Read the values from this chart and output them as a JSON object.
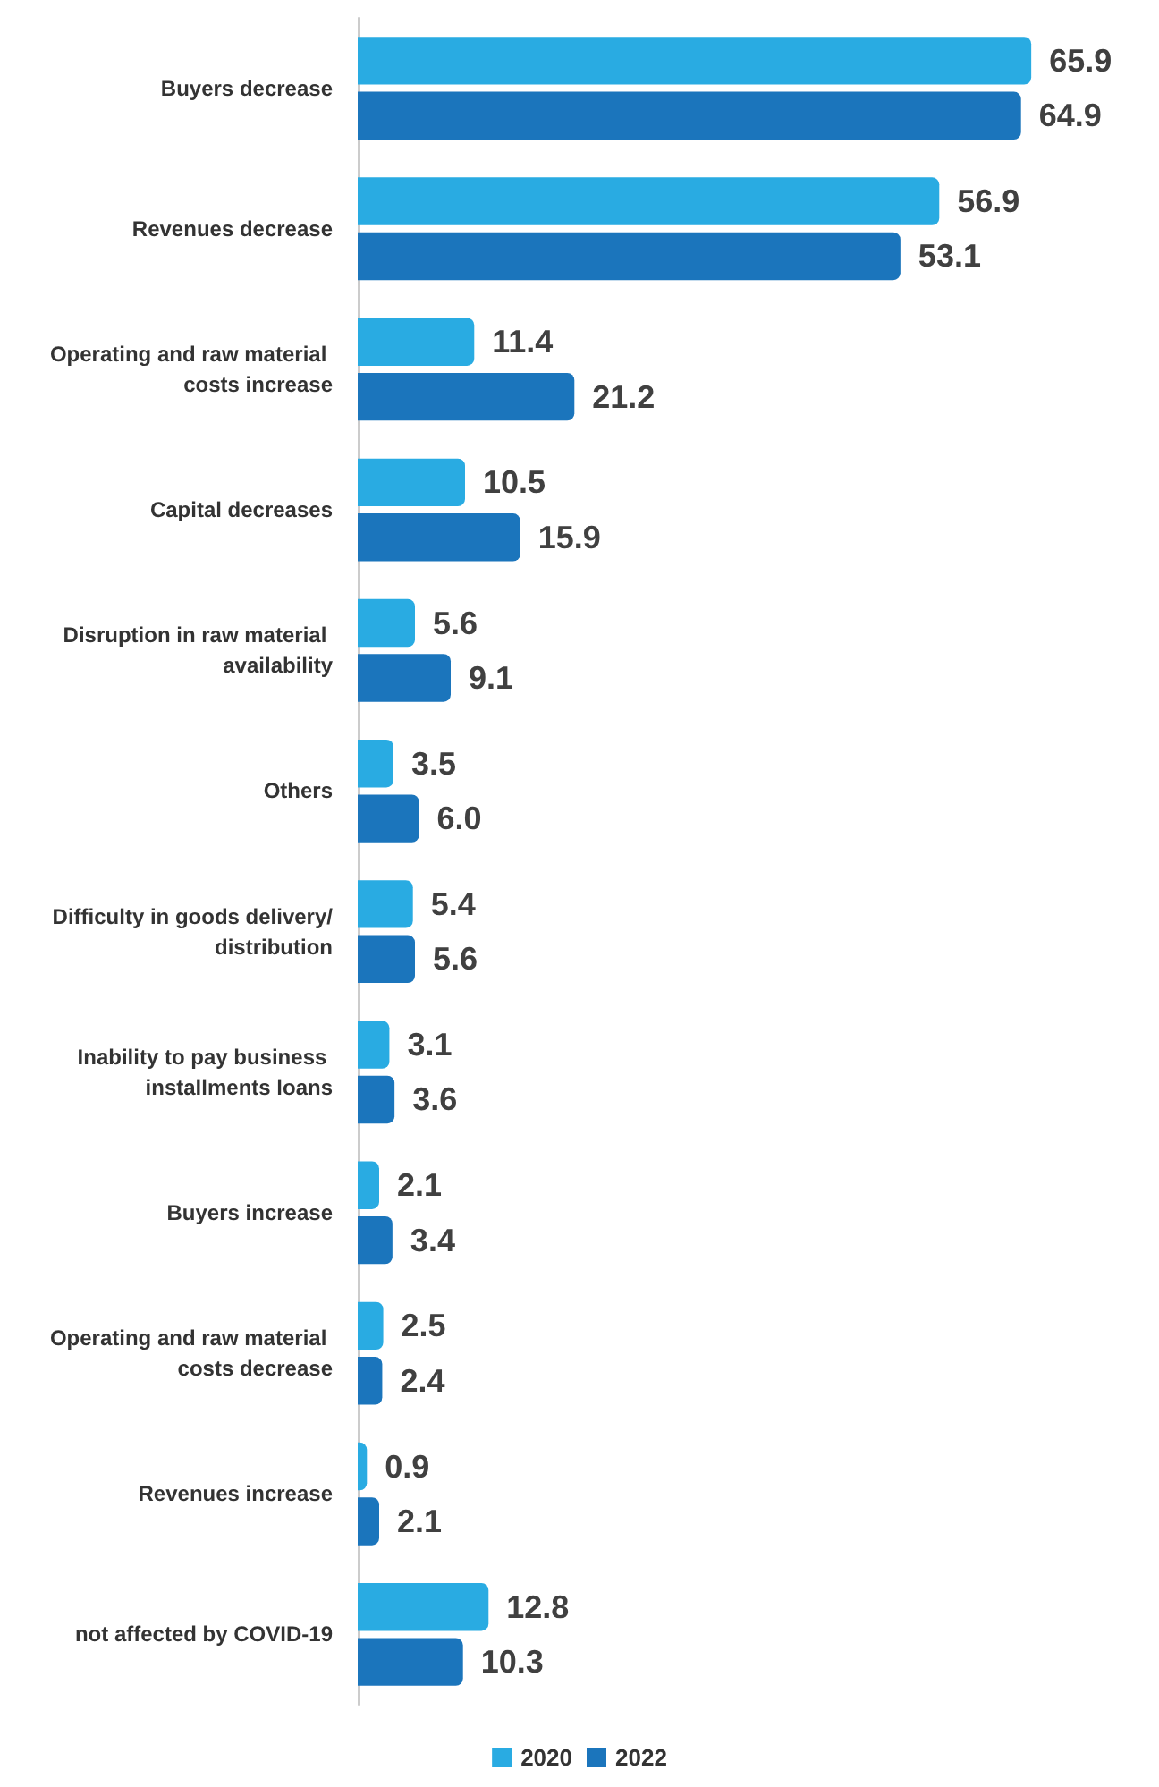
{
  "chart_data": {
    "type": "bar",
    "orientation": "horizontal",
    "legend": "bottom",
    "categories": [
      "Buyers decrease",
      "Revenues decrease",
      "Operating and raw material costs increase",
      "Capital decreases",
      "Disruption in raw material availability",
      "Others",
      "Difficulty in goods delivery/distribution",
      "Inability to pay business installments loans",
      "Buyers increase",
      "Operating and raw material costs decrease",
      "Revenues increase",
      "not affected by COVID-19"
    ],
    "series": [
      {
        "name": "2020",
        "color": "#29abe2",
        "values": [
          65.9,
          56.9,
          11.4,
          10.5,
          5.6,
          3.5,
          5.4,
          3.1,
          2.1,
          2.5,
          0.9,
          12.8
        ],
        "value_labels": [
          "65.9",
          "56.9",
          "11.4",
          "10.5",
          "5.6",
          "3.5",
          "5.4",
          "3.1",
          "2.1",
          "2.5",
          "0.9",
          "12.8"
        ]
      },
      {
        "name": "2022",
        "color": "#1b75bc",
        "values": [
          64.9,
          53.1,
          21.2,
          15.9,
          9.1,
          6.0,
          5.6,
          3.6,
          3.4,
          2.4,
          2.1,
          10.3
        ],
        "value_labels": [
          "64.9",
          "53.1",
          "21.2",
          "15.9",
          "9.1",
          "6.0",
          "5.6",
          "3.6",
          "3.4",
          "2.4",
          "2.1",
          "10.3"
        ]
      }
    ]
  }
}
